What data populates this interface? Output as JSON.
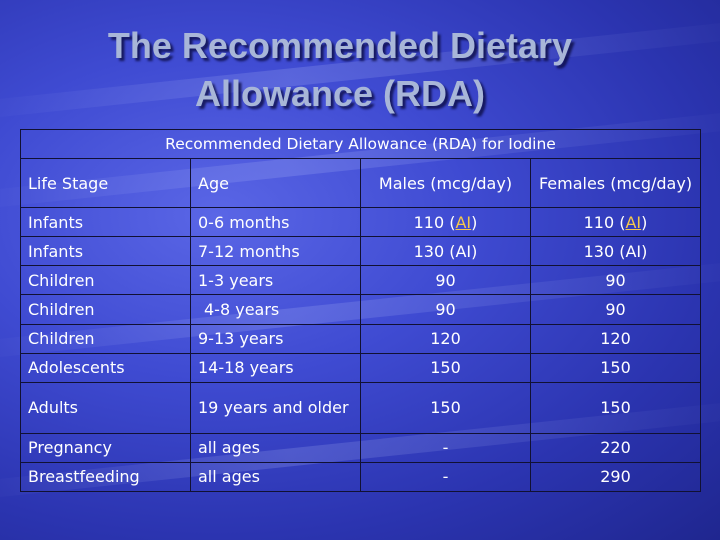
{
  "slide": {
    "title_line1": "The Recommended Dietary",
    "title_line2": "Allowance (RDA)"
  },
  "table": {
    "caption": "Recommended Dietary Allowance (RDA) for Iodine",
    "headers": [
      "Life Stage",
      "Age",
      "Males (mcg/day)",
      "Females (mcg/day)"
    ],
    "rows": [
      {
        "stage": "Infants",
        "age": "0-6 months",
        "males_val": "110",
        "males_note": "AI",
        "females_val": "110",
        "females_note": "AI"
      },
      {
        "stage": "Infants",
        "age": "7-12 months",
        "males": "130 (AI)",
        "females": "130 (AI)"
      },
      {
        "stage": "Children",
        "age": "1-3 years",
        "males": "90",
        "females": "90"
      },
      {
        "stage": "Children",
        "age": "4-8 years",
        "males": "90",
        "females": "90"
      },
      {
        "stage": "Children",
        "age": "9-13 years",
        "males": "120",
        "females": "120"
      },
      {
        "stage": "Adolescents",
        "age": "14-18 years",
        "males": "150",
        "females": "150"
      },
      {
        "stage": "Adults",
        "age": "19 years and older",
        "males": "150",
        "females": "150"
      },
      {
        "stage": "Pregnancy",
        "age": "all ages",
        "males": "-",
        "females": "220"
      },
      {
        "stage": "Breastfeeding",
        "age": "all ages",
        "males": "-",
        "females": "290"
      }
    ]
  },
  "colors": {
    "title": "#a8b6d8",
    "ai_link": "#f5c84c",
    "background": "#3f4bd2"
  }
}
